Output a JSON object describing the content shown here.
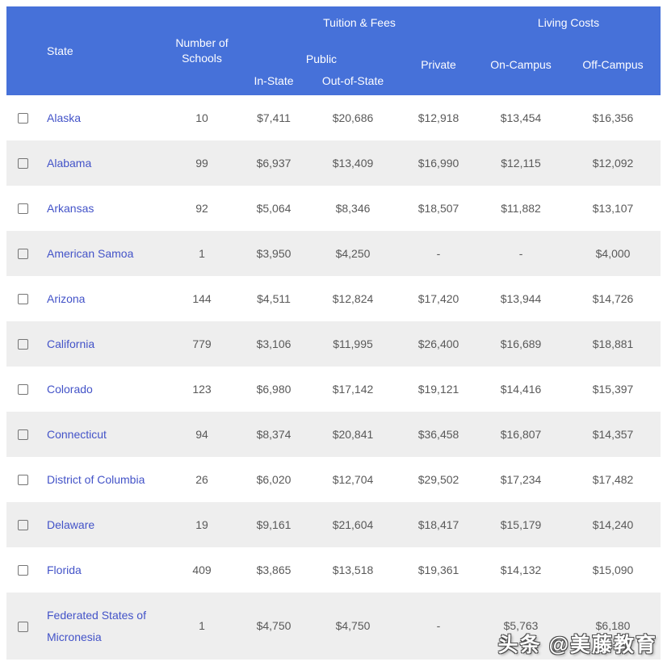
{
  "colors": {
    "header_bg": "#4671D9",
    "header_text": "#FDFDFF",
    "link": "#4353C8",
    "body_text": "#595959",
    "stripe": "#EEEEEE"
  },
  "table": {
    "header": {
      "state": "State",
      "schools": "Number of Schools",
      "tuition_group": "Tuition & Fees",
      "living_group": "Living Costs",
      "public": "Public",
      "in_state": "In-State",
      "out_of_state": "Out-of-State",
      "private": "Private",
      "on_campus": "On-Campus",
      "off_campus": "Off-Campus"
    },
    "rows": [
      {
        "state": "Alaska",
        "schools": "10",
        "in_state": "$7,411",
        "out_of_state": "$20,686",
        "private": "$12,918",
        "on_campus": "$13,454",
        "off_campus": "$16,356"
      },
      {
        "state": "Alabama",
        "schools": "99",
        "in_state": "$6,937",
        "out_of_state": "$13,409",
        "private": "$16,990",
        "on_campus": "$12,115",
        "off_campus": "$12,092"
      },
      {
        "state": "Arkansas",
        "schools": "92",
        "in_state": "$5,064",
        "out_of_state": "$8,346",
        "private": "$18,507",
        "on_campus": "$11,882",
        "off_campus": "$13,107"
      },
      {
        "state": "American Samoa",
        "schools": "1",
        "in_state": "$3,950",
        "out_of_state": "$4,250",
        "private": "-",
        "on_campus": "-",
        "off_campus": "$4,000"
      },
      {
        "state": "Arizona",
        "schools": "144",
        "in_state": "$4,511",
        "out_of_state": "$12,824",
        "private": "$17,420",
        "on_campus": "$13,944",
        "off_campus": "$14,726"
      },
      {
        "state": "California",
        "schools": "779",
        "in_state": "$3,106",
        "out_of_state": "$11,995",
        "private": "$26,400",
        "on_campus": "$16,689",
        "off_campus": "$18,881"
      },
      {
        "state": "Colorado",
        "schools": "123",
        "in_state": "$6,980",
        "out_of_state": "$17,142",
        "private": "$19,121",
        "on_campus": "$14,416",
        "off_campus": "$15,397"
      },
      {
        "state": "Connecticut",
        "schools": "94",
        "in_state": "$8,374",
        "out_of_state": "$20,841",
        "private": "$36,458",
        "on_campus": "$16,807",
        "off_campus": "$14,357"
      },
      {
        "state": "District of Columbia",
        "schools": "26",
        "in_state": "$6,020",
        "out_of_state": "$12,704",
        "private": "$29,502",
        "on_campus": "$17,234",
        "off_campus": "$17,482"
      },
      {
        "state": "Delaware",
        "schools": "19",
        "in_state": "$9,161",
        "out_of_state": "$21,604",
        "private": "$18,417",
        "on_campus": "$15,179",
        "off_campus": "$14,240"
      },
      {
        "state": "Florida",
        "schools": "409",
        "in_state": "$3,865",
        "out_of_state": "$13,518",
        "private": "$19,361",
        "on_campus": "$14,132",
        "off_campus": "$15,090"
      },
      {
        "state": "Federated States of Micronesia",
        "schools": "1",
        "in_state": "$4,750",
        "out_of_state": "$4,750",
        "private": "-",
        "on_campus": "$5,763",
        "off_campus": "$6,180"
      }
    ]
  },
  "watermark": "头条 @美藤教育"
}
